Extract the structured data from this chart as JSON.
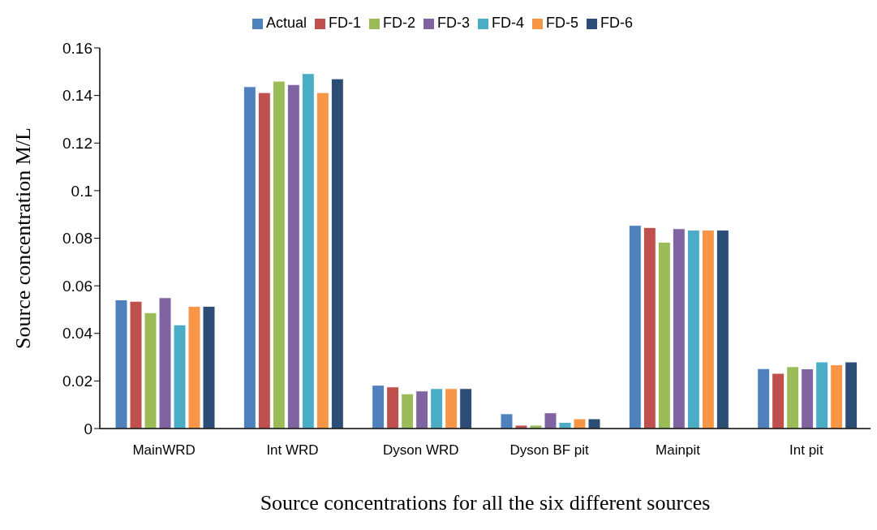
{
  "chart_data": {
    "type": "bar",
    "xlabel": "Source concentrations for all the six different sources",
    "ylabel": "Source concentration M/L",
    "categories": [
      "MainWRD",
      "Int WRD",
      "Dyson WRD",
      "Dyson BF pit",
      "Mainpit",
      "Int pit"
    ],
    "series": [
      {
        "name": "Actual",
        "color": "#4f81bd",
        "values": [
          0.0541,
          0.1437,
          0.0182,
          0.0062,
          0.0854,
          0.0252
        ]
      },
      {
        "name": "FD-1",
        "color": "#c0504d",
        "values": [
          0.0535,
          0.1412,
          0.0175,
          0.0014,
          0.0845,
          0.0232
        ]
      },
      {
        "name": "FD-2",
        "color": "#9bbb59",
        "values": [
          0.0487,
          0.146,
          0.0146,
          0.0014,
          0.0783,
          0.026
        ]
      },
      {
        "name": "FD-3",
        "color": "#8064a2",
        "values": [
          0.055,
          0.1446,
          0.0158,
          0.0066,
          0.084,
          0.0251
        ]
      },
      {
        "name": "FD-4",
        "color": "#4bacc6",
        "values": [
          0.0436,
          0.1492,
          0.0168,
          0.0026,
          0.0834,
          0.028
        ]
      },
      {
        "name": "FD-5",
        "color": "#f79646",
        "values": [
          0.0514,
          0.1412,
          0.0168,
          0.0041,
          0.0834,
          0.0268
        ]
      },
      {
        "name": "FD-6",
        "color": "#2c4d75",
        "values": [
          0.0514,
          0.147,
          0.0168,
          0.0041,
          0.0834,
          0.028
        ]
      }
    ],
    "ylim": [
      0,
      0.16
    ],
    "yticks": [
      0,
      0.02,
      0.04,
      0.06,
      0.08,
      0.1,
      0.12,
      0.14,
      0.16
    ],
    "grid": false,
    "legend": "top"
  }
}
